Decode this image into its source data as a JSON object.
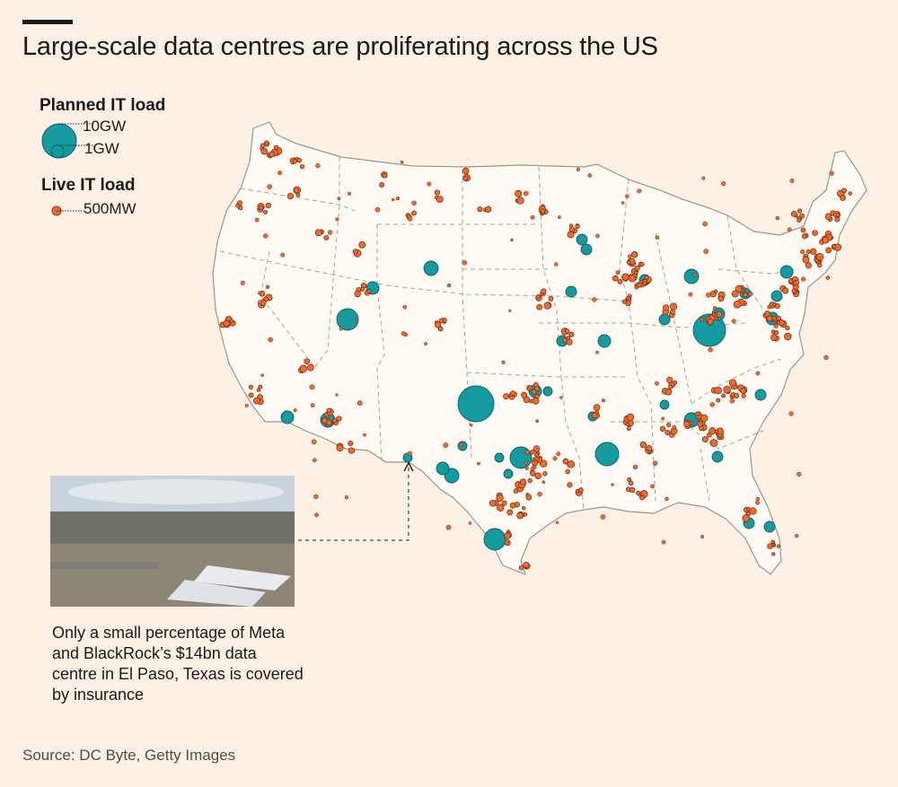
{
  "title": "Large-scale data centres are proliferating across the US",
  "legend": {
    "planned_title": "Planned IT load",
    "planned_sizes": [
      "10GW",
      "1GW"
    ],
    "live_title": "Live IT load",
    "live_size": "500MW"
  },
  "colors": {
    "background": "#fdf1e6",
    "land": "#fffaf4",
    "state_border": "#9a9590",
    "planned": "#159aa0",
    "live": "#ef6a2f"
  },
  "photo_caption": "Only a small percentage of Meta and BlackRock’s $14bn data centre in El Paso, Texas is covered by insurance",
  "source": "Source: DC Byte, Getty Images"
}
